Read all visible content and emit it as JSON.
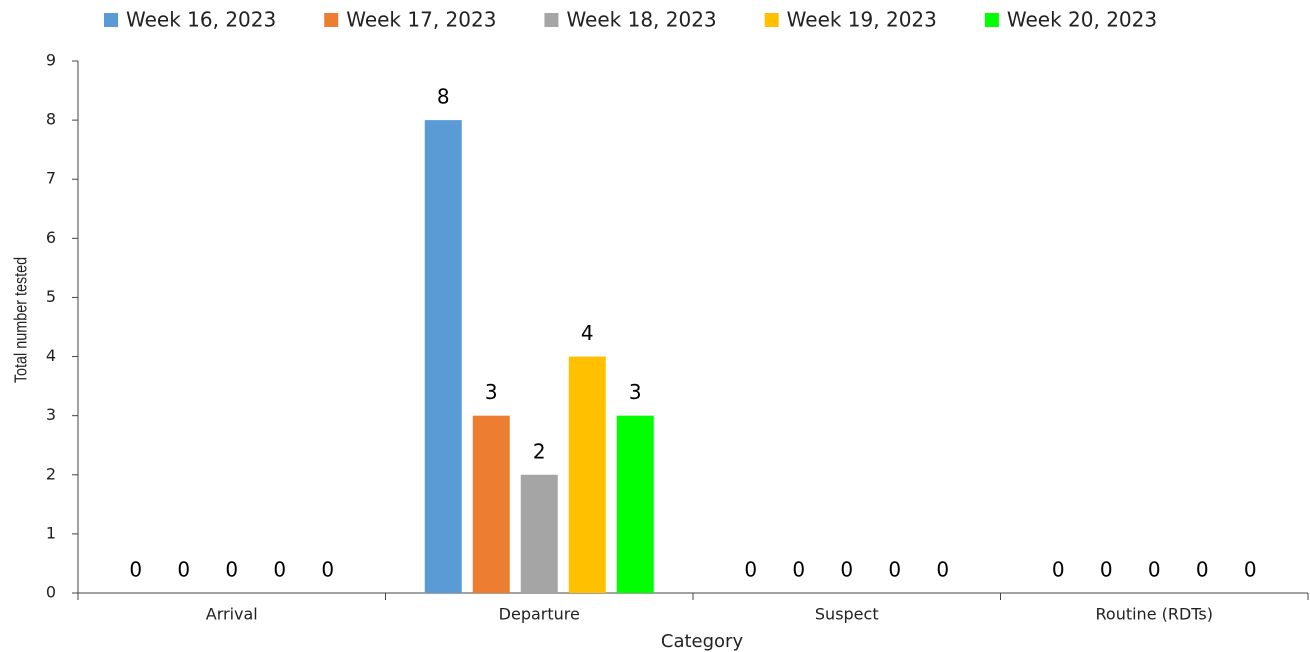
{
  "chart_data": {
    "type": "bar",
    "x_label": "Category",
    "y_label": "Total number tested",
    "categories": [
      "Arrival",
      "Departure",
      "Suspect",
      "Routine (RDTs)"
    ],
    "series": [
      {
        "name": "Week 16, 2023",
        "color": "#5b9bd5",
        "values": [
          0,
          8,
          0,
          0
        ]
      },
      {
        "name": "Week 17, 2023",
        "color": "#ed7d31",
        "values": [
          0,
          3,
          0,
          0
        ]
      },
      {
        "name": "Week 18, 2023",
        "color": "#a5a5a5",
        "values": [
          0,
          2,
          0,
          0
        ]
      },
      {
        "name": "Week 19, 2023",
        "color": "#ffc000",
        "values": [
          0,
          4,
          0,
          0
        ]
      },
      {
        "name": "Week 20, 2023",
        "color": "#00ff00",
        "values": [
          0,
          3,
          0,
          0
        ]
      }
    ],
    "ylim": [
      0,
      9
    ],
    "yticks": [
      0,
      1,
      2,
      3,
      4,
      5,
      6,
      7,
      8,
      9
    ],
    "legend": "top",
    "grid": false
  }
}
